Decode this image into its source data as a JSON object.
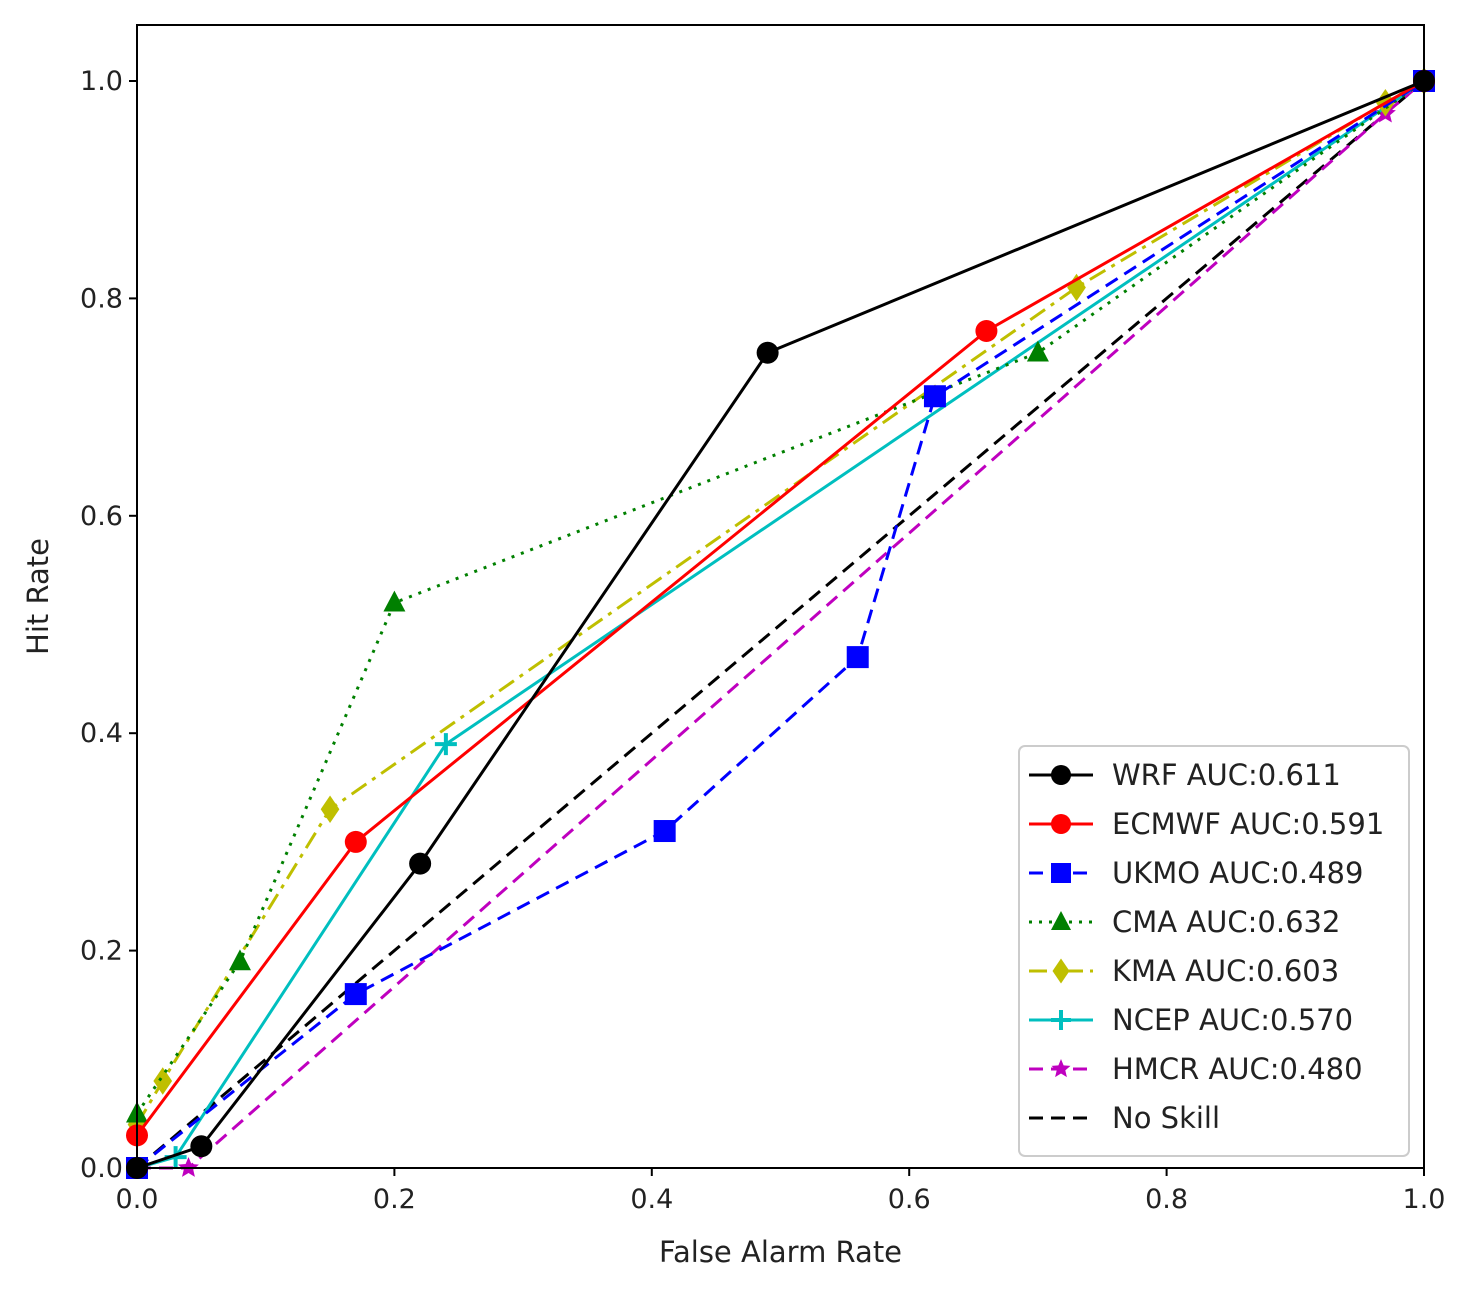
{
  "chart_data": {
    "type": "line",
    "title": "",
    "xlabel": "False Alarm Rate",
    "ylabel": "Hit Rate",
    "xlim": [
      0,
      1
    ],
    "ylim": [
      0,
      1.05
    ],
    "xticks": [
      "0.0",
      "0.2",
      "0.4",
      "0.6",
      "0.8",
      "1.0"
    ],
    "yticks": [
      "0.0",
      "0.2",
      "0.4",
      "0.6",
      "0.8",
      "1.0"
    ],
    "grid": false,
    "legend_position": "lower-right",
    "series": [
      {
        "name": "WRF  AUC:0.611",
        "color": "#000000",
        "dash": "solid",
        "marker": "circle",
        "x": [
          0,
          0.05,
          0.22,
          0.49,
          1.0
        ],
        "y": [
          0,
          0.02,
          0.28,
          0.75,
          1.0
        ]
      },
      {
        "name": "ECMWF  AUC:0.591",
        "color": "#ff0000",
        "dash": "solid",
        "marker": "circle",
        "x": [
          0,
          0.17,
          0.66,
          1.0
        ],
        "y": [
          0.03,
          0.3,
          0.77,
          1.0
        ]
      },
      {
        "name": "UKMO  AUC:0.489",
        "color": "#0000ff",
        "dash": "dashed",
        "marker": "square",
        "x": [
          0,
          0.17,
          0.41,
          0.56,
          0.62,
          1.0
        ],
        "y": [
          0,
          0.16,
          0.31,
          0.47,
          0.71,
          1.0
        ]
      },
      {
        "name": "CMA  AUC:0.632",
        "color": "#008000",
        "dash": "dotted",
        "marker": "triangle",
        "x": [
          0,
          0.08,
          0.2,
          0.7,
          1.0
        ],
        "y": [
          0.05,
          0.19,
          0.52,
          0.75,
          1.0
        ]
      },
      {
        "name": "KMA  AUC:0.603",
        "color": "#bfbf00",
        "dash": "dashdot",
        "marker": "diamond",
        "x": [
          0,
          0.02,
          0.15,
          0.73,
          0.97,
          1.0
        ],
        "y": [
          0.04,
          0.08,
          0.33,
          0.81,
          0.98,
          1.0
        ]
      },
      {
        "name": "NCEP  AUC:0.570",
        "color": "#00bfbf",
        "dash": "solid",
        "marker": "plus",
        "x": [
          0,
          0.03,
          0.24,
          1.0
        ],
        "y": [
          0,
          0.01,
          0.39,
          1.0
        ]
      },
      {
        "name": "HMCR  AUC:0.480",
        "color": "#bf00bf",
        "dash": "dashed",
        "marker": "star",
        "x": [
          0,
          0.04,
          0.97,
          1.0
        ],
        "y": [
          0,
          0,
          0.97,
          1.0
        ]
      },
      {
        "name": "No Skill",
        "color": "#000000",
        "dash": "dashed",
        "marker": "none",
        "x": [
          0,
          1
        ],
        "y": [
          0,
          1
        ]
      }
    ]
  }
}
